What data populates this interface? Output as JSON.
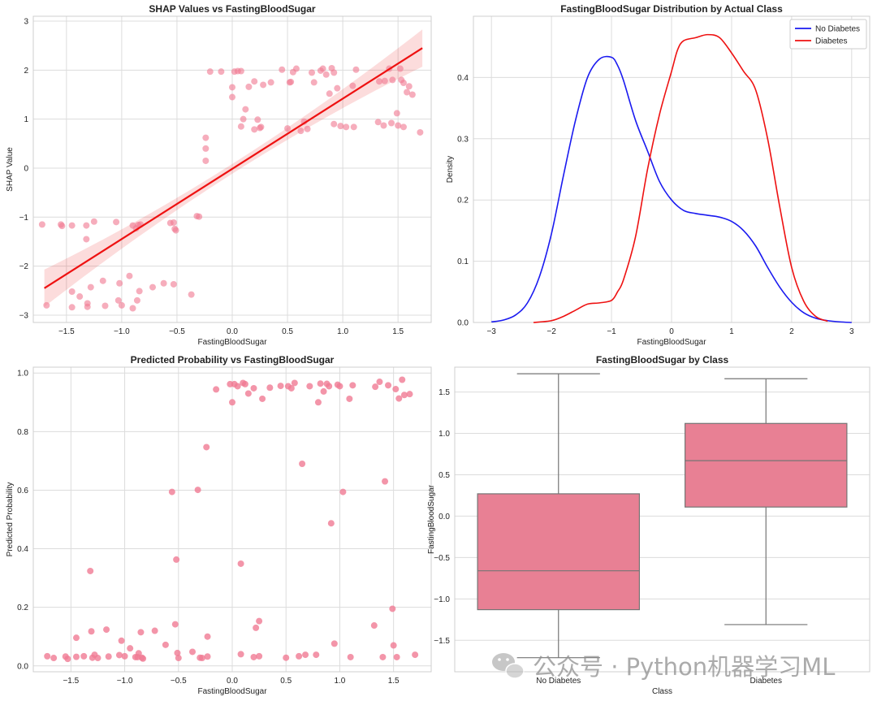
{
  "chart_data": [
    {
      "type": "scatter",
      "title": "SHAP Values vs FastingBloodSugar",
      "xlabel": "FastingBloodSugar",
      "ylabel": "SHAP Value",
      "xlim": [
        -1.8,
        1.8
      ],
      "ylim": [
        -3.15,
        3.1
      ],
      "xticks": [
        -1.5,
        -1.0,
        -0.5,
        0.0,
        0.5,
        1.0,
        1.5
      ],
      "xtick_labels": [
        "−1.5",
        "−1.0",
        "−0.5",
        "0.0",
        "0.5",
        "1.0",
        "1.5"
      ],
      "yticks": [
        -3,
        -2,
        -1,
        0,
        1,
        2,
        3
      ],
      "ytick_labels": [
        "−3",
        "−2",
        "−1",
        "0",
        "1",
        "2",
        "3"
      ],
      "grid": true,
      "point_color": "#f07b93",
      "regression": {
        "color": "#ee1111",
        "start": [
          -1.7,
          -2.45
        ],
        "end": [
          1.72,
          2.45
        ],
        "ci_halfwidth_ends": 0.38,
        "ci_halfwidth_mid": 0.1
      },
      "points": [
        [
          -1.72,
          -1.15
        ],
        [
          -1.68,
          -2.8
        ],
        [
          -1.55,
          -1.15
        ],
        [
          -1.54,
          -1.18
        ],
        [
          -1.45,
          -1.17
        ],
        [
          -1.45,
          -2.52
        ],
        [
          -1.45,
          -2.84
        ],
        [
          -1.38,
          -2.62
        ],
        [
          -1.32,
          -1.17
        ],
        [
          -1.32,
          -1.45
        ],
        [
          -1.31,
          -2.76
        ],
        [
          -1.31,
          -2.83
        ],
        [
          -1.28,
          -2.43
        ],
        [
          -1.25,
          -1.09
        ],
        [
          -1.17,
          -2.3
        ],
        [
          -1.15,
          -2.81
        ],
        [
          -1.05,
          -1.1
        ],
        [
          -1.03,
          -2.7
        ],
        [
          -1.02,
          -2.35
        ],
        [
          -1.0,
          -2.8
        ],
        [
          -0.93,
          -2.2
        ],
        [
          -0.9,
          -1.17
        ],
        [
          -0.9,
          -2.86
        ],
        [
          -0.87,
          -1.23
        ],
        [
          -0.86,
          -2.7
        ],
        [
          -0.85,
          -1.16
        ],
        [
          -0.84,
          -2.51
        ],
        [
          -0.83,
          -1.15
        ],
        [
          -0.72,
          -2.43
        ],
        [
          -0.62,
          -2.35
        ],
        [
          -0.56,
          -1.12
        ],
        [
          -0.53,
          -1.11
        ],
        [
          -0.53,
          -2.37
        ],
        [
          -0.52,
          -1.24
        ],
        [
          -0.51,
          -1.27
        ],
        [
          -0.37,
          -2.58
        ],
        [
          -0.32,
          -0.98
        ],
        [
          -0.3,
          -0.99
        ],
        [
          -0.24,
          0.62
        ],
        [
          -0.24,
          0.4
        ],
        [
          -0.24,
          0.15
        ],
        [
          -0.2,
          1.97
        ],
        [
          -0.1,
          1.97
        ],
        [
          0.0,
          1.45
        ],
        [
          0.0,
          1.65
        ],
        [
          0.02,
          1.97
        ],
        [
          0.05,
          1.98
        ],
        [
          0.08,
          1.98
        ],
        [
          0.08,
          0.85
        ],
        [
          0.1,
          1.0
        ],
        [
          0.12,
          1.2
        ],
        [
          0.15,
          1.66
        ],
        [
          0.2,
          1.77
        ],
        [
          0.2,
          0.79
        ],
        [
          0.23,
          0.99
        ],
        [
          0.25,
          0.82
        ],
        [
          0.26,
          0.84
        ],
        [
          0.28,
          1.7
        ],
        [
          0.35,
          1.75
        ],
        [
          0.45,
          2.01
        ],
        [
          0.5,
          0.81
        ],
        [
          0.52,
          1.75
        ],
        [
          0.53,
          1.76
        ],
        [
          0.55,
          1.96
        ],
        [
          0.58,
          2.03
        ],
        [
          0.62,
          0.76
        ],
        [
          0.65,
          0.95
        ],
        [
          0.68,
          0.8
        ],
        [
          0.72,
          1.95
        ],
        [
          0.74,
          1.75
        ],
        [
          0.8,
          1.99
        ],
        [
          0.82,
          2.03
        ],
        [
          0.85,
          1.91
        ],
        [
          0.88,
          1.52
        ],
        [
          0.9,
          2.04
        ],
        [
          0.92,
          1.95
        ],
        [
          0.92,
          0.9
        ],
        [
          0.95,
          1.63
        ],
        [
          0.98,
          0.86
        ],
        [
          1.03,
          0.84
        ],
        [
          1.09,
          1.68
        ],
        [
          1.1,
          0.84
        ],
        [
          1.12,
          2.01
        ],
        [
          1.32,
          0.94
        ],
        [
          1.33,
          1.77
        ],
        [
          1.37,
          0.87
        ],
        [
          1.38,
          1.78
        ],
        [
          1.42,
          2.03
        ],
        [
          1.44,
          0.92
        ],
        [
          1.45,
          1.8
        ],
        [
          1.49,
          1.12
        ],
        [
          1.5,
          0.87
        ],
        [
          1.52,
          2.03
        ],
        [
          1.53,
          1.8
        ],
        [
          1.55,
          0.84
        ],
        [
          1.55,
          1.74
        ],
        [
          1.58,
          1.55
        ],
        [
          1.6,
          1.67
        ],
        [
          1.63,
          1.5
        ],
        [
          1.7,
          0.73
        ]
      ]
    },
    {
      "type": "line",
      "title": "FastingBloodSugar Distribution by Actual Class",
      "xlabel": "FastingBloodSugar",
      "ylabel": "Density",
      "xlim": [
        -3.3,
        3.3
      ],
      "ylim": [
        0,
        0.5
      ],
      "xticks": [
        -3,
        -2,
        -1,
        0,
        1,
        2,
        3
      ],
      "xtick_labels": [
        "−3",
        "−2",
        "−1",
        "0",
        "1",
        "2",
        "3"
      ],
      "yticks": [
        0.0,
        0.1,
        0.2,
        0.3,
        0.4
      ],
      "ytick_labels": [
        "0.0",
        "0.1",
        "0.2",
        "0.3",
        "0.4"
      ],
      "grid": true,
      "legend": "top-right",
      "series": [
        {
          "name": "No Diabetes",
          "color": "#1a1af0",
          "x": [
            -3.0,
            -2.8,
            -2.6,
            -2.4,
            -2.2,
            -2.0,
            -1.8,
            -1.6,
            -1.4,
            -1.2,
            -1.0,
            -0.9,
            -0.8,
            -0.6,
            -0.4,
            -0.2,
            0.0,
            0.2,
            0.4,
            0.6,
            0.8,
            1.0,
            1.2,
            1.4,
            1.6,
            1.8,
            2.0,
            2.2,
            2.4,
            2.6,
            2.8,
            3.0
          ],
          "y": [
            0.001,
            0.004,
            0.012,
            0.032,
            0.075,
            0.145,
            0.24,
            0.33,
            0.4,
            0.43,
            0.433,
            0.42,
            0.395,
            0.33,
            0.28,
            0.23,
            0.2,
            0.183,
            0.178,
            0.175,
            0.172,
            0.165,
            0.15,
            0.125,
            0.09,
            0.058,
            0.033,
            0.016,
            0.007,
            0.003,
            0.001,
            0.0
          ]
        },
        {
          "name": "Diabetes",
          "color": "#ee1111",
          "x": [
            -2.3,
            -2.0,
            -1.8,
            -1.6,
            -1.4,
            -1.2,
            -1.0,
            -0.9,
            -0.8,
            -0.6,
            -0.4,
            -0.2,
            0.0,
            0.1,
            0.2,
            0.4,
            0.6,
            0.8,
            1.0,
            1.2,
            1.4,
            1.6,
            1.8,
            2.0,
            2.2,
            2.4,
            2.6
          ],
          "y": [
            0.0,
            0.003,
            0.01,
            0.02,
            0.03,
            0.032,
            0.036,
            0.05,
            0.07,
            0.14,
            0.25,
            0.34,
            0.41,
            0.445,
            0.46,
            0.465,
            0.47,
            0.465,
            0.44,
            0.41,
            0.38,
            0.3,
            0.19,
            0.09,
            0.035,
            0.01,
            0.002
          ]
        }
      ]
    },
    {
      "type": "scatter",
      "title": "Predicted Probability vs FastingBloodSugar",
      "xlabel": "FastingBloodSugar",
      "ylabel": "Predicted Probability",
      "xlim": [
        -1.85,
        1.85
      ],
      "ylim": [
        -0.02,
        1.02
      ],
      "xticks": [
        -1.5,
        -1.0,
        -0.5,
        0.0,
        0.5,
        1.0,
        1.5
      ],
      "xtick_labels": [
        "−1.5",
        "−1.0",
        "−0.5",
        "0.0",
        "0.5",
        "1.0",
        "1.5"
      ],
      "yticks": [
        0.0,
        0.2,
        0.4,
        0.6,
        0.8,
        1.0
      ],
      "ytick_labels": [
        "0.0",
        "0.2",
        "0.4",
        "0.6",
        "0.8",
        "1.0"
      ],
      "grid": true,
      "point_color": "#f07b93",
      "points": [
        [
          -1.72,
          0.033
        ],
        [
          -1.66,
          0.027
        ],
        [
          -1.55,
          0.032
        ],
        [
          -1.53,
          0.024
        ],
        [
          -1.45,
          0.031
        ],
        [
          -1.45,
          0.096
        ],
        [
          -1.38,
          0.033
        ],
        [
          -1.32,
          0.324
        ],
        [
          -1.31,
          0.118
        ],
        [
          -1.3,
          0.028
        ],
        [
          -1.28,
          0.038
        ],
        [
          -1.25,
          0.027
        ],
        [
          -1.17,
          0.124
        ],
        [
          -1.15,
          0.032
        ],
        [
          -1.05,
          0.037
        ],
        [
          -1.03,
          0.086
        ],
        [
          -1.0,
          0.033
        ],
        [
          -0.95,
          0.06
        ],
        [
          -0.9,
          0.03
        ],
        [
          -0.88,
          0.03
        ],
        [
          -0.87,
          0.043
        ],
        [
          -0.85,
          0.115
        ],
        [
          -0.84,
          0.028
        ],
        [
          -0.83,
          0.025
        ],
        [
          -0.72,
          0.12
        ],
        [
          -0.62,
          0.072
        ],
        [
          -0.56,
          0.594
        ],
        [
          -0.53,
          0.142
        ],
        [
          -0.52,
          0.363
        ],
        [
          -0.51,
          0.044
        ],
        [
          -0.5,
          0.027
        ],
        [
          -0.37,
          0.048
        ],
        [
          -0.32,
          0.601
        ],
        [
          -0.3,
          0.028
        ],
        [
          -0.28,
          0.027
        ],
        [
          -0.24,
          0.747
        ],
        [
          -0.23,
          0.1
        ],
        [
          -0.23,
          0.032
        ],
        [
          -0.15,
          0.944
        ],
        [
          -0.02,
          0.962
        ],
        [
          0.0,
          0.9
        ],
        [
          0.02,
          0.962
        ],
        [
          0.05,
          0.955
        ],
        [
          0.08,
          0.349
        ],
        [
          0.08,
          0.04
        ],
        [
          0.1,
          0.966
        ],
        [
          0.12,
          0.962
        ],
        [
          0.15,
          0.93
        ],
        [
          0.2,
          0.948
        ],
        [
          0.2,
          0.03
        ],
        [
          0.22,
          0.13
        ],
        [
          0.25,
          0.153
        ],
        [
          0.25,
          0.033
        ],
        [
          0.28,
          0.912
        ],
        [
          0.35,
          0.95
        ],
        [
          0.45,
          0.956
        ],
        [
          0.5,
          0.028
        ],
        [
          0.52,
          0.955
        ],
        [
          0.55,
          0.948
        ],
        [
          0.58,
          0.966
        ],
        [
          0.62,
          0.033
        ],
        [
          0.65,
          0.69
        ],
        [
          0.68,
          0.038
        ],
        [
          0.72,
          0.955
        ],
        [
          0.78,
          0.038
        ],
        [
          0.8,
          0.9
        ],
        [
          0.82,
          0.964
        ],
        [
          0.85,
          0.937
        ],
        [
          0.88,
          0.963
        ],
        [
          0.9,
          0.955
        ],
        [
          0.92,
          0.487
        ],
        [
          0.95,
          0.076
        ],
        [
          0.98,
          0.96
        ],
        [
          1.0,
          0.955
        ],
        [
          1.03,
          0.594
        ],
        [
          1.09,
          0.912
        ],
        [
          1.1,
          0.03
        ],
        [
          1.12,
          0.958
        ],
        [
          1.32,
          0.138
        ],
        [
          1.33,
          0.953
        ],
        [
          1.37,
          0.97
        ],
        [
          1.4,
          0.03
        ],
        [
          1.42,
          0.63
        ],
        [
          1.45,
          0.958
        ],
        [
          1.49,
          0.195
        ],
        [
          1.5,
          0.07
        ],
        [
          1.52,
          0.945
        ],
        [
          1.53,
          0.03
        ],
        [
          1.55,
          0.913
        ],
        [
          1.58,
          0.977
        ],
        [
          1.6,
          0.925
        ],
        [
          1.65,
          0.928
        ],
        [
          1.7,
          0.038
        ]
      ]
    },
    {
      "type": "box",
      "title": "FastingBloodSugar by Class",
      "xlabel": "Class",
      "ylabel": "FastingBloodSugar",
      "ylim": [
        -1.88,
        1.8
      ],
      "yticks": [
        -1.5,
        -1.0,
        -0.5,
        0.0,
        0.5,
        1.0,
        1.5
      ],
      "ytick_labels": [
        "−1.5",
        "−1.0",
        "−0.5",
        "0.0",
        "0.5",
        "1.0",
        "1.5"
      ],
      "categories": [
        "No Diabetes",
        "Diabetes"
      ],
      "box_color": "#e88094",
      "line_color": "#757575",
      "boxes": [
        {
          "label": "No Diabetes",
          "whislo": -1.71,
          "q1": -1.13,
          "med": -0.66,
          "q3": 0.27,
          "whishi": 1.72
        },
        {
          "label": "Diabetes",
          "whislo": -1.31,
          "q1": 0.11,
          "med": 0.67,
          "q3": 1.12,
          "whishi": 1.66
        }
      ]
    }
  ],
  "watermark": {
    "text": "公众号 · Python机器学习ML",
    "icon": "wechat-icon"
  }
}
